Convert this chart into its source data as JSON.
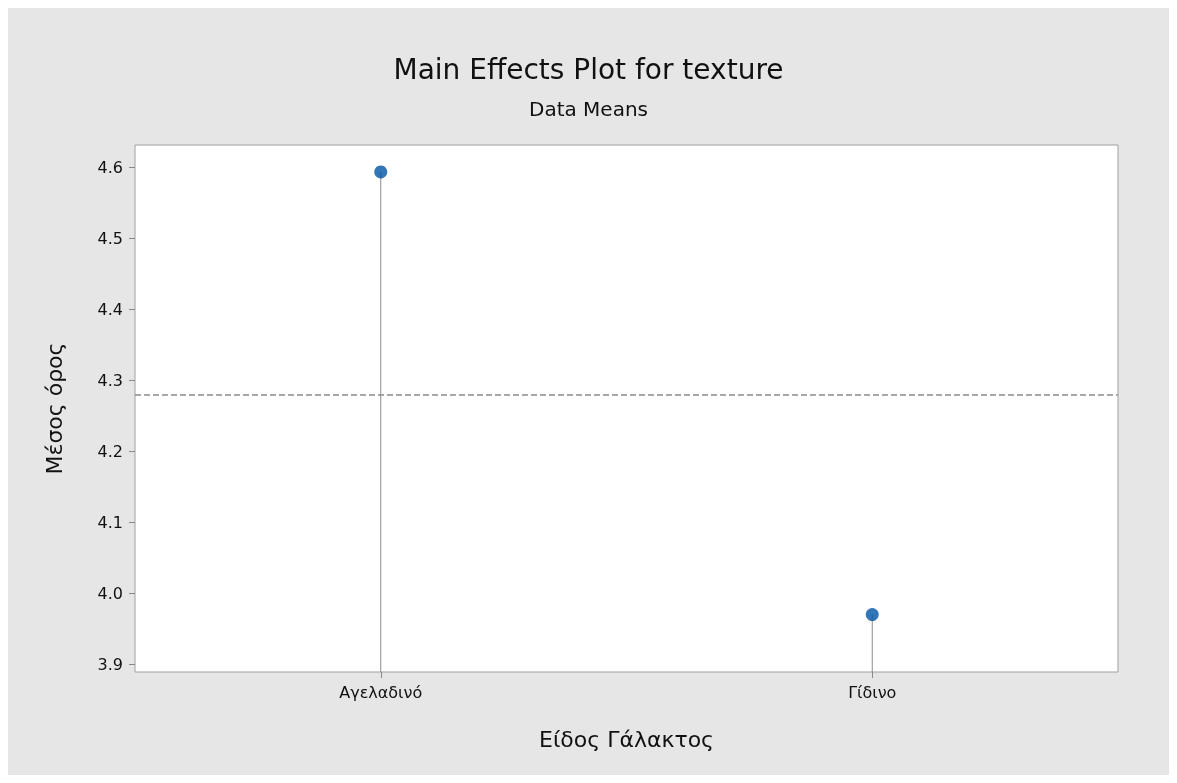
{
  "chart_data": {
    "type": "lollipop",
    "title": "Main Effects Plot for texture",
    "subtitle": "Data Means",
    "xlabel": "Είδος Γάλακτος",
    "ylabel": "Μέσος όρος",
    "categories": [
      "Αγελαδινό",
      "Γίδινο"
    ],
    "values": [
      4.594,
      3.97
    ],
    "color": "#0054a6",
    "marker": "circle",
    "ylim": [
      3.889,
      4.632
    ],
    "yticks": [
      3.9,
      {
        "value": 4,
        "label": "4.0"
      },
      4.1,
      4.2,
      4.3,
      4.4,
      4.5,
      4.6
    ],
    "ref_lines": [
      {
        "axis": "y",
        "value": 4.279,
        "color": "#8c8c8c",
        "line_style": "dashed"
      }
    ],
    "grid": false
  }
}
